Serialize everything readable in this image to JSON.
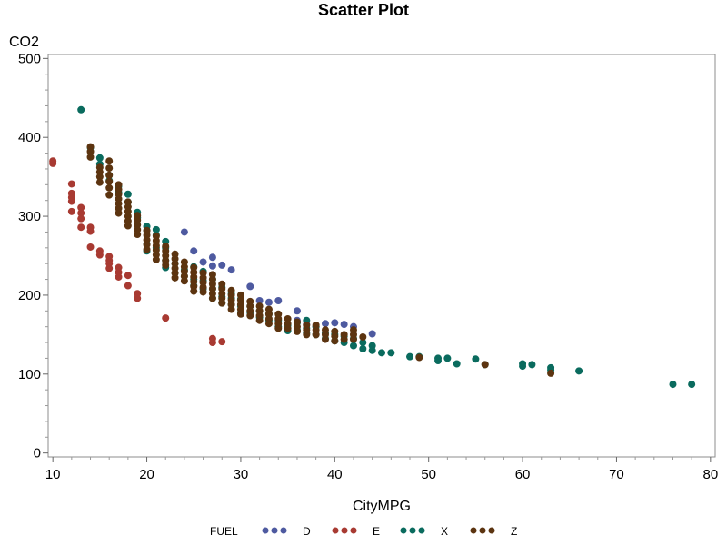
{
  "chart_data": {
    "type": "scatter",
    "title": "Scatter Plot",
    "xlabel": "CityMPG",
    "ylabel": "CO2",
    "xlim": [
      9.5,
      80.5
    ],
    "ylim": [
      -5,
      505
    ],
    "x_ticks": [
      10,
      20,
      30,
      40,
      50,
      60,
      70,
      80
    ],
    "y_ticks": [
      0,
      100,
      200,
      300,
      400,
      500
    ],
    "grid": false,
    "legend_title": "FUEL",
    "legend_position": "bottom",
    "series": [
      {
        "name": "D",
        "color": "#4e5aa0",
        "points": [
          [
            24,
            280
          ],
          [
            25,
            256
          ],
          [
            26,
            242
          ],
          [
            27,
            248
          ],
          [
            27,
            237
          ],
          [
            28,
            238
          ],
          [
            29,
            232
          ],
          [
            31,
            211
          ],
          [
            32,
            193
          ],
          [
            33,
            191
          ],
          [
            34,
            193
          ],
          [
            36,
            180
          ],
          [
            36,
            168
          ],
          [
            37,
            163
          ],
          [
            38,
            160
          ],
          [
            39,
            164
          ],
          [
            40,
            165
          ],
          [
            41,
            163
          ],
          [
            42,
            160
          ],
          [
            44,
            151
          ]
        ]
      },
      {
        "name": "E",
        "color": "#a83a32",
        "points": [
          [
            10,
            370
          ],
          [
            10,
            367
          ],
          [
            12,
            341
          ],
          [
            12,
            329
          ],
          [
            12,
            324
          ],
          [
            12,
            319
          ],
          [
            12,
            306
          ],
          [
            13,
            311
          ],
          [
            13,
            304
          ],
          [
            13,
            297
          ],
          [
            13,
            286
          ],
          [
            14,
            286
          ],
          [
            14,
            281
          ],
          [
            14,
            261
          ],
          [
            15,
            256
          ],
          [
            15,
            251
          ],
          [
            16,
            249
          ],
          [
            16,
            244
          ],
          [
            16,
            240
          ],
          [
            16,
            234
          ],
          [
            17,
            235
          ],
          [
            17,
            229
          ],
          [
            17,
            223
          ],
          [
            18,
            225
          ],
          [
            18,
            212
          ],
          [
            19,
            202
          ],
          [
            19,
            196
          ],
          [
            22,
            171
          ],
          [
            27,
            145
          ],
          [
            27,
            140
          ],
          [
            28,
            141
          ]
        ]
      },
      {
        "name": "X",
        "color": "#0a6b5e",
        "points": [
          [
            13,
            435
          ],
          [
            14,
            387
          ],
          [
            15,
            374
          ],
          [
            15,
            366
          ],
          [
            16,
            352
          ],
          [
            16,
            345
          ],
          [
            17,
            338
          ],
          [
            17,
            330
          ],
          [
            18,
            328
          ],
          [
            18,
            318
          ],
          [
            19,
            305
          ],
          [
            19,
            298
          ],
          [
            20,
            287
          ],
          [
            20,
            282
          ],
          [
            20,
            265
          ],
          [
            20,
            256
          ],
          [
            21,
            283
          ],
          [
            21,
            276
          ],
          [
            21,
            260
          ],
          [
            22,
            268
          ],
          [
            22,
            260
          ],
          [
            22,
            244
          ],
          [
            22,
            235
          ],
          [
            23,
            240
          ],
          [
            23,
            228
          ],
          [
            24,
            232
          ],
          [
            24,
            224
          ],
          [
            25,
            236
          ],
          [
            25,
            220
          ],
          [
            25,
            212
          ],
          [
            26,
            230
          ],
          [
            26,
            218
          ],
          [
            26,
            208
          ],
          [
            27,
            220
          ],
          [
            27,
            208
          ],
          [
            27,
            196
          ],
          [
            28,
            210
          ],
          [
            28,
            198
          ],
          [
            28,
            190
          ],
          [
            29,
            202
          ],
          [
            29,
            196
          ],
          [
            29,
            188
          ],
          [
            30,
            195
          ],
          [
            30,
            186
          ],
          [
            30,
            178
          ],
          [
            31,
            186
          ],
          [
            31,
            178
          ],
          [
            32,
            180
          ],
          [
            32,
            172
          ],
          [
            33,
            176
          ],
          [
            33,
            168
          ],
          [
            34,
            168
          ],
          [
            34,
            160
          ],
          [
            35,
            162
          ],
          [
            35,
            155
          ],
          [
            36,
            165
          ],
          [
            36,
            156
          ],
          [
            37,
            168
          ],
          [
            37,
            158
          ],
          [
            37,
            152
          ],
          [
            38,
            160
          ],
          [
            38,
            150
          ],
          [
            39,
            152
          ],
          [
            39,
            145
          ],
          [
            40,
            150
          ],
          [
            40,
            142
          ],
          [
            41,
            148
          ],
          [
            41,
            140
          ],
          [
            42,
            145
          ],
          [
            42,
            136
          ],
          [
            43,
            140
          ],
          [
            43,
            132
          ],
          [
            44,
            136
          ],
          [
            44,
            130
          ],
          [
            45,
            127
          ],
          [
            46,
            127
          ],
          [
            48,
            122
          ],
          [
            49,
            122
          ],
          [
            51,
            120
          ],
          [
            51,
            117
          ],
          [
            52,
            120
          ],
          [
            53,
            113
          ],
          [
            55,
            119
          ],
          [
            56,
            112
          ],
          [
            60,
            113
          ],
          [
            60,
            110
          ],
          [
            61,
            112
          ],
          [
            63,
            108
          ],
          [
            63,
            105
          ],
          [
            66,
            104
          ],
          [
            76,
            87
          ],
          [
            78,
            87
          ]
        ]
      },
      {
        "name": "Z",
        "color": "#5c3410",
        "points": [
          [
            14,
            388
          ],
          [
            14,
            382
          ],
          [
            14,
            375
          ],
          [
            15,
            362
          ],
          [
            15,
            356
          ],
          [
            15,
            350
          ],
          [
            15,
            343
          ],
          [
            16,
            370
          ],
          [
            16,
            361
          ],
          [
            16,
            352
          ],
          [
            16,
            344
          ],
          [
            16,
            336
          ],
          [
            16,
            327
          ],
          [
            17,
            340
          ],
          [
            17,
            334
          ],
          [
            17,
            328
          ],
          [
            17,
            322
          ],
          [
            17,
            316
          ],
          [
            17,
            310
          ],
          [
            17,
            304
          ],
          [
            18,
            318
          ],
          [
            18,
            312
          ],
          [
            18,
            306
          ],
          [
            18,
            300
          ],
          [
            18,
            294
          ],
          [
            18,
            288
          ],
          [
            19,
            301
          ],
          [
            19,
            295
          ],
          [
            19,
            289
          ],
          [
            19,
            283
          ],
          [
            19,
            277
          ],
          [
            20,
            282
          ],
          [
            20,
            276
          ],
          [
            20,
            270
          ],
          [
            20,
            264
          ],
          [
            20,
            258
          ],
          [
            21,
            275
          ],
          [
            21,
            269
          ],
          [
            21,
            263
          ],
          [
            21,
            257
          ],
          [
            21,
            251
          ],
          [
            21,
            245
          ],
          [
            22,
            262
          ],
          [
            22,
            256
          ],
          [
            22,
            250
          ],
          [
            22,
            244
          ],
          [
            22,
            238
          ],
          [
            23,
            252
          ],
          [
            23,
            246
          ],
          [
            23,
            240
          ],
          [
            23,
            234
          ],
          [
            23,
            228
          ],
          [
            23,
            222
          ],
          [
            24,
            242
          ],
          [
            24,
            236
          ],
          [
            24,
            230
          ],
          [
            24,
            224
          ],
          [
            24,
            218
          ],
          [
            25,
            235
          ],
          [
            25,
            229
          ],
          [
            25,
            223
          ],
          [
            25,
            217
          ],
          [
            25,
            211
          ],
          [
            25,
            205
          ],
          [
            26,
            228
          ],
          [
            26,
            222
          ],
          [
            26,
            216
          ],
          [
            26,
            210
          ],
          [
            26,
            204
          ],
          [
            27,
            226
          ],
          [
            27,
            220
          ],
          [
            27,
            214
          ],
          [
            27,
            208
          ],
          [
            27,
            202
          ],
          [
            27,
            196
          ],
          [
            28,
            214
          ],
          [
            28,
            208
          ],
          [
            28,
            202
          ],
          [
            28,
            196
          ],
          [
            28,
            190
          ],
          [
            29,
            206
          ],
          [
            29,
            200
          ],
          [
            29,
            194
          ],
          [
            29,
            188
          ],
          [
            29,
            182
          ],
          [
            30,
            200
          ],
          [
            30,
            194
          ],
          [
            30,
            188
          ],
          [
            30,
            182
          ],
          [
            30,
            176
          ],
          [
            31,
            192
          ],
          [
            31,
            186
          ],
          [
            31,
            180
          ],
          [
            31,
            174
          ],
          [
            32,
            186
          ],
          [
            32,
            180
          ],
          [
            32,
            174
          ],
          [
            32,
            168
          ],
          [
            33,
            182
          ],
          [
            33,
            176
          ],
          [
            33,
            170
          ],
          [
            33,
            164
          ],
          [
            34,
            176
          ],
          [
            34,
            170
          ],
          [
            34,
            164
          ],
          [
            34,
            158
          ],
          [
            35,
            170
          ],
          [
            35,
            164
          ],
          [
            35,
            158
          ],
          [
            36,
            166
          ],
          [
            36,
            160
          ],
          [
            36,
            154
          ],
          [
            37,
            162
          ],
          [
            37,
            156
          ],
          [
            37,
            150
          ],
          [
            38,
            162
          ],
          [
            38,
            156
          ],
          [
            38,
            150
          ],
          [
            39,
            156
          ],
          [
            39,
            150
          ],
          [
            39,
            144
          ],
          [
            40,
            154
          ],
          [
            40,
            148
          ],
          [
            40,
            142
          ],
          [
            41,
            150
          ],
          [
            41,
            144
          ],
          [
            42,
            156
          ],
          [
            42,
            150
          ],
          [
            42,
            144
          ],
          [
            43,
            147
          ],
          [
            49,
            121
          ],
          [
            56,
            112
          ],
          [
            63,
            101
          ]
        ]
      }
    ]
  }
}
